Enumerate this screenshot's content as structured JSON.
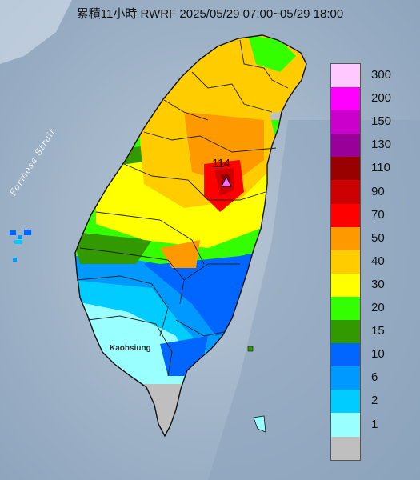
{
  "title": "累積11小時 RWRF 2025/05/29 07:00~05/29 18:00",
  "sea_label": "Formosa Strait",
  "city_label": "Kaohsiung",
  "peak": {
    "value": "114",
    "marker_icon": "triangle-marker-icon"
  },
  "legend": [
    {
      "label": "300",
      "color": "#ffc9ff"
    },
    {
      "label": "200",
      "color": "#ff00ff"
    },
    {
      "label": "150",
      "color": "#cc00cc"
    },
    {
      "label": "130",
      "color": "#990099"
    },
    {
      "label": "110",
      "color": "#990000"
    },
    {
      "label": "90",
      "color": "#cc0000"
    },
    {
      "label": "70",
      "color": "#ff0000"
    },
    {
      "label": "50",
      "color": "#ff9900"
    },
    {
      "label": "40",
      "color": "#ffcc00"
    },
    {
      "label": "30",
      "color": "#ffff00"
    },
    {
      "label": "20",
      "color": "#33ff00"
    },
    {
      "label": "15",
      "color": "#339900"
    },
    {
      "label": "10",
      "color": "#0066ff"
    },
    {
      "label": "6",
      "color": "#0099ff"
    },
    {
      "label": "2",
      "color": "#00ccff"
    },
    {
      "label": "1",
      "color": "#99ffff"
    },
    {
      "label": "",
      "color": "#bfbfbf"
    }
  ]
}
